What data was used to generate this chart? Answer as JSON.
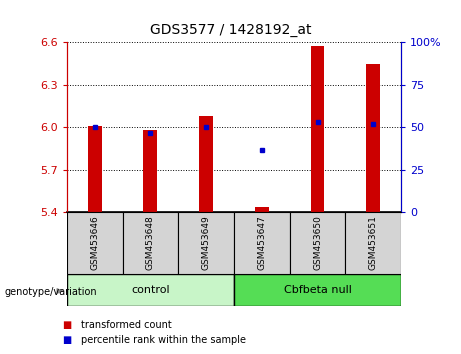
{
  "title": "GDS3577 / 1428192_at",
  "samples": [
    "GSM453646",
    "GSM453648",
    "GSM453649",
    "GSM453647",
    "GSM453650",
    "GSM453651"
  ],
  "transformed_count": [
    6.01,
    5.985,
    6.08,
    5.435,
    6.575,
    6.45
  ],
  "percentile_rank": [
    50,
    47,
    50,
    37,
    53,
    52
  ],
  "ylim_left": [
    5.4,
    6.6
  ],
  "ylim_right": [
    0,
    100
  ],
  "yticks_left": [
    5.4,
    5.7,
    6.0,
    6.3,
    6.6
  ],
  "yticks_right": [
    0,
    25,
    50,
    75,
    100
  ],
  "bar_color": "#cc0000",
  "dot_color": "#0000cc",
  "bar_width": 0.25,
  "baseline": 5.4,
  "control_color": "#c8f5c8",
  "cbfbeta_color": "#55dd55",
  "sample_box_color": "#d4d4d4",
  "legend_tc": "transformed count",
  "legend_pr": "percentile rank within the sample",
  "ctrl_indices": [
    0,
    1,
    2
  ],
  "cbf_indices": [
    3,
    4,
    5
  ]
}
